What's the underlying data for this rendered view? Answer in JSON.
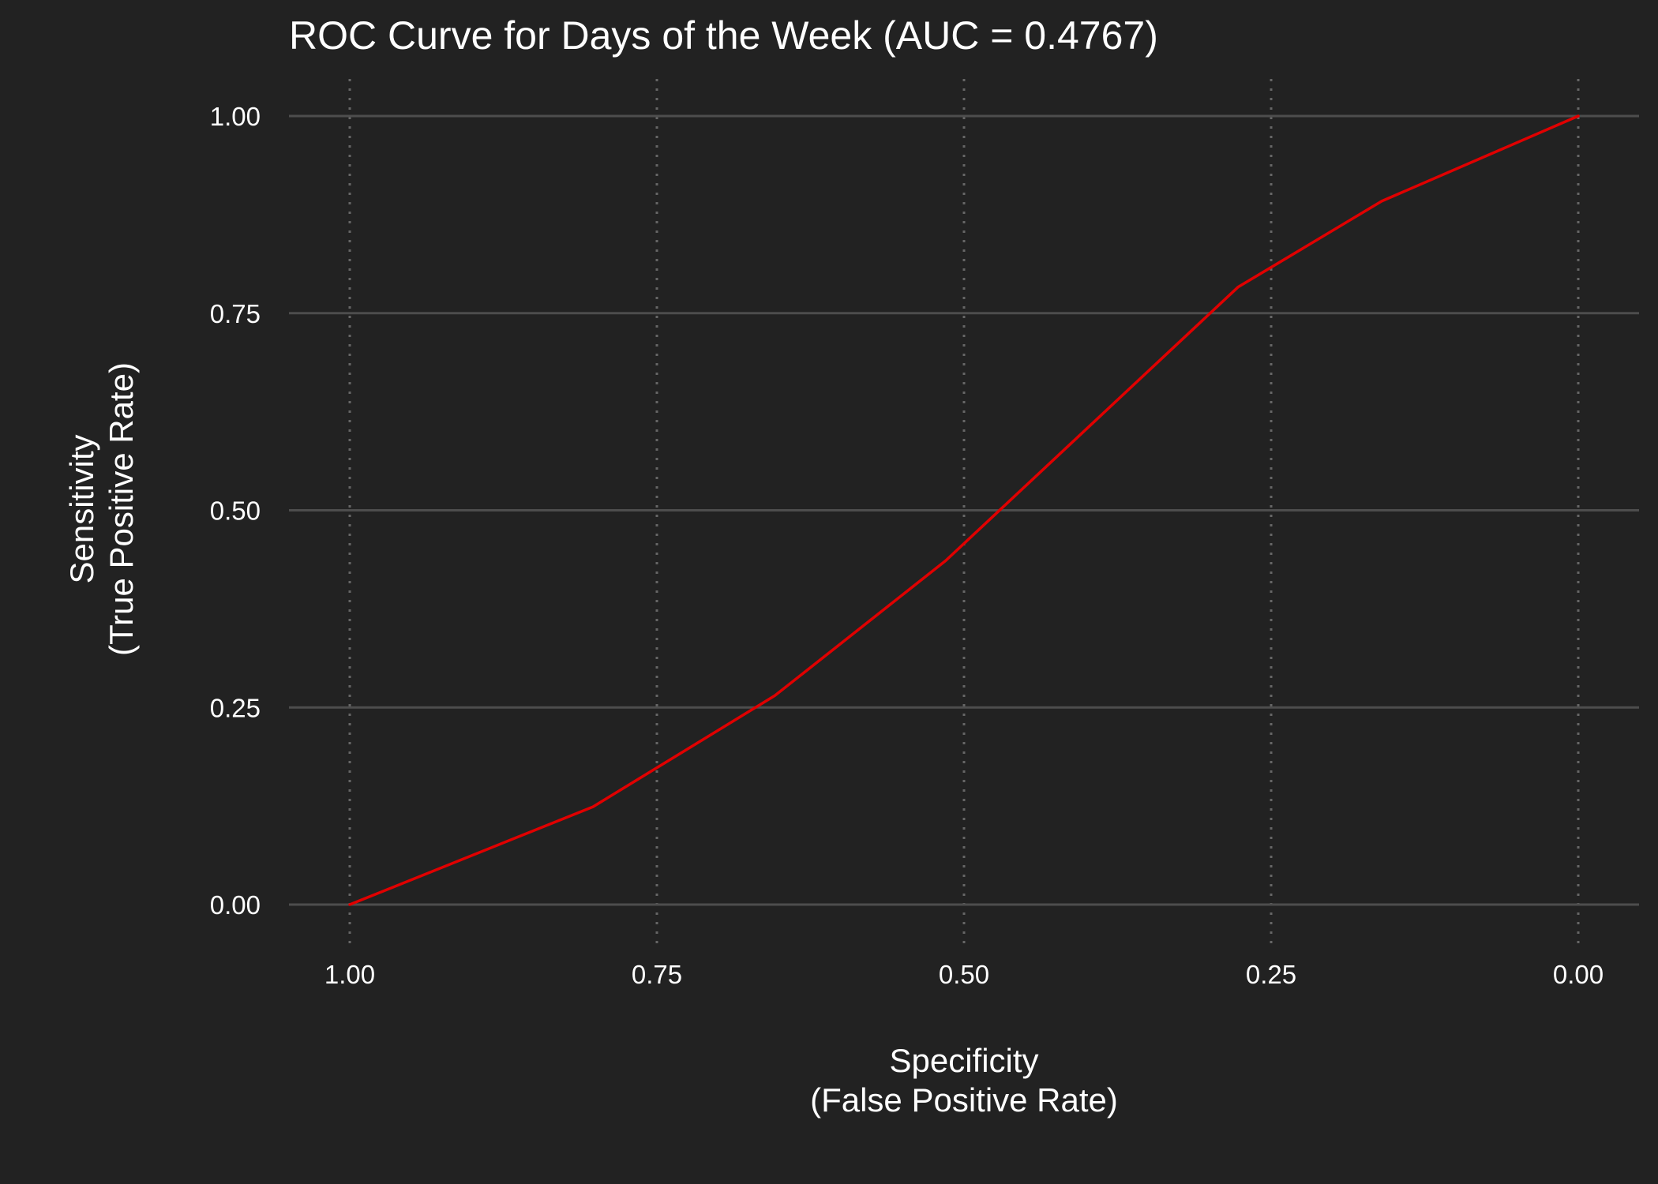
{
  "colors": {
    "background": "#222222",
    "text": "#ffffff",
    "major_grid": "#4d4d4d",
    "minor_grid": "#666666",
    "curve": "#e00000"
  },
  "chart_data": {
    "type": "line",
    "title": "ROC Curve for Days of the Week (AUC = 0.4767)",
    "xlabel": [
      "Specificity",
      "(False Positive Rate)"
    ],
    "ylabel": [
      "Sensitivity",
      "(True Positive Rate)"
    ],
    "x_reversed": true,
    "xlim": [
      1.0,
      0.0
    ],
    "ylim": [
      0.0,
      1.0
    ],
    "x_ticks": [
      1.0,
      0.75,
      0.5,
      0.25,
      0.0
    ],
    "x_tick_labels": [
      "1.00",
      "0.75",
      "0.50",
      "0.25",
      "0.00"
    ],
    "y_ticks": [
      0.0,
      0.25,
      0.5,
      0.75,
      1.0
    ],
    "y_tick_labels": [
      "0.00",
      "0.25",
      "0.50",
      "0.75",
      "1.00"
    ],
    "grid": true,
    "series": [
      {
        "points": [
          {
            "specificity": 1.0,
            "sensitivity": 0.0
          },
          {
            "specificity": 0.802,
            "sensitivity": 0.124
          },
          {
            "specificity": 0.654,
            "sensitivity": 0.265
          },
          {
            "specificity": 0.515,
            "sensitivity": 0.436
          },
          {
            "specificity": 0.277,
            "sensitivity": 0.783
          },
          {
            "specificity": 0.16,
            "sensitivity": 0.892
          },
          {
            "specificity": 0.0,
            "sensitivity": 1.0
          }
        ]
      }
    ]
  }
}
